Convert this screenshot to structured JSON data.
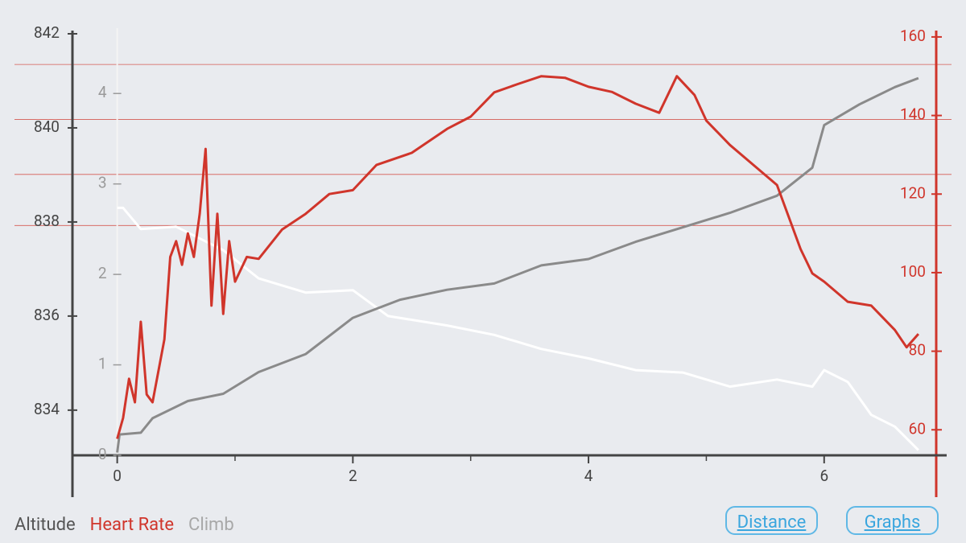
{
  "chart_data": {
    "type": "line",
    "xlim": [
      -0.38,
      7.04
    ],
    "xticks": [
      0,
      2,
      4,
      6
    ],
    "xminorticks": [
      1,
      3,
      5
    ],
    "ylim": [
      833.04,
      842
    ],
    "yticks": [
      834,
      836,
      838,
      840,
      842
    ],
    "y2lim": [
      53.5,
      160.8
    ],
    "y2ticks": [
      60,
      80,
      100,
      120,
      140,
      160
    ],
    "y3lim": [
      0,
      4.66
    ],
    "y3ticks": [
      0,
      1,
      2,
      3,
      4
    ],
    "y2_reference_lines": [
      153,
      139,
      125,
      112
    ],
    "series": [
      {
        "name": "Altitude",
        "color": "#ffffff",
        "axis": "y",
        "x": [
          0,
          0.05,
          0.2,
          0.5,
          0.9,
          1.2,
          1.6,
          2.0,
          2.3,
          2.8,
          3.2,
          3.6,
          4.0,
          4.4,
          4.8,
          5.2,
          5.6,
          5.9,
          6.0,
          6.2,
          6.4,
          6.6,
          6.8
        ],
        "values": [
          838.3,
          838.3,
          837.85,
          837.9,
          837.4,
          836.8,
          836.5,
          836.55,
          836.0,
          835.8,
          835.6,
          835.3,
          835.1,
          834.85,
          834.8,
          834.5,
          834.65,
          834.5,
          834.85,
          834.6,
          833.9,
          833.65,
          833.15
        ]
      },
      {
        "name": "Heart Rate",
        "color": "#d0352b",
        "axis": "y2",
        "x": [
          0,
          0.05,
          0.1,
          0.15,
          0.2,
          0.25,
          0.3,
          0.4,
          0.45,
          0.5,
          0.55,
          0.6,
          0.65,
          0.7,
          0.75,
          0.8,
          0.85,
          0.9,
          0.95,
          1.0,
          1.1,
          1.2,
          1.4,
          1.6,
          1.8,
          2.0,
          2.2,
          2.5,
          2.8,
          3.0,
          3.2,
          3.4,
          3.6,
          3.8,
          4.0,
          4.2,
          4.4,
          4.6,
          4.75,
          4.9,
          5.0,
          5.2,
          5.4,
          5.6,
          5.8,
          5.9,
          6.0,
          6.2,
          6.4,
          6.6,
          6.7,
          6.8
        ],
        "values": [
          57.7,
          63,
          73,
          67,
          87.5,
          69,
          67,
          83,
          104,
          108,
          102,
          110,
          104,
          115,
          131.5,
          91.6,
          115,
          89.5,
          108,
          97.7,
          104,
          103.5,
          111,
          115,
          120,
          121,
          127.4,
          130.5,
          136.6,
          139.7,
          145.9,
          148,
          150,
          149.6,
          147.3,
          146,
          143,
          140.7,
          150,
          145.2,
          138.7,
          132.5,
          127.4,
          122.3,
          106,
          99.8,
          97.7,
          92.6,
          91.6,
          85.4,
          81,
          84.4
        ]
      },
      {
        "name": "Climb",
        "color": "#8a8a8a",
        "axis": "y3",
        "x": [
          0,
          0.02,
          0.2,
          0.3,
          0.6,
          0.9,
          1.2,
          1.6,
          2.0,
          2.4,
          2.8,
          3.2,
          3.6,
          4.0,
          4.4,
          4.8,
          5.2,
          5.6,
          5.9,
          6.0,
          6.3,
          6.6,
          6.8
        ],
        "values": [
          0.03,
          0.23,
          0.25,
          0.41,
          0.6,
          0.68,
          0.92,
          1.12,
          1.52,
          1.72,
          1.83,
          1.9,
          2.1,
          2.17,
          2.36,
          2.52,
          2.68,
          2.87,
          3.18,
          3.65,
          3.88,
          4.07,
          4.17
        ]
      }
    ]
  },
  "buttons": [
    "Distance",
    "Graphs"
  ]
}
